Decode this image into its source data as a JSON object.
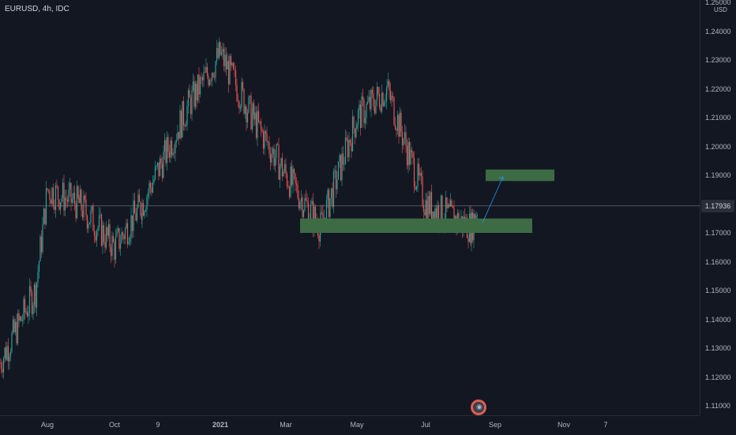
{
  "header": {
    "symbol": "EURUSD, 4h, IDC"
  },
  "price_scale": {
    "currency": "USD",
    "ticks": [
      "1.25000",
      "1.24000",
      "1.23000",
      "1.22000",
      "1.21000",
      "1.20000",
      "1.19000",
      "1.18000",
      "1.17000",
      "1.16000",
      "1.15000",
      "1.14000",
      "1.13000",
      "1.12000",
      "1.11000"
    ],
    "current_price": "1.17936"
  },
  "time_axis": {
    "labels": [
      {
        "text": "Aug",
        "bold": false
      },
      {
        "text": "Oct",
        "bold": false
      },
      {
        "text": "9",
        "bold": false
      },
      {
        "text": "2021",
        "bold": true
      },
      {
        "text": "Mar",
        "bold": false
      },
      {
        "text": "May",
        "bold": false
      },
      {
        "text": "Jul",
        "bold": false
      },
      {
        "text": "Sep",
        "bold": false
      },
      {
        "text": "Nov",
        "bold": false
      },
      {
        "text": "7",
        "bold": false
      }
    ]
  },
  "colors": {
    "background": "#131722",
    "up": "#26a69a",
    "down": "#ef5350",
    "zone": "#3d6b44",
    "arrow": "#2196f3"
  },
  "chart_data": {
    "type": "candlestick",
    "symbol": "EURUSD",
    "timeframe": "4h",
    "ylim": [
      1.11,
      1.25
    ],
    "price_path": [
      {
        "x": "Jun 2020",
        "y": 1.125
      },
      {
        "x": "Jul 2020",
        "y": 1.15
      },
      {
        "x": "Aug 2020",
        "y": 1.185
      },
      {
        "x": "Sep 2020",
        "y": 1.18
      },
      {
        "x": "Oct 2020",
        "y": 1.165
      },
      {
        "x": "Nov 2020",
        "y": 1.18
      },
      {
        "x": "Dec 2020",
        "y": 1.215
      },
      {
        "x": "Jan 2021",
        "y": 1.232
      },
      {
        "x": "Feb 2021",
        "y": 1.21
      },
      {
        "x": "Mar 2021",
        "y": 1.19
      },
      {
        "x": "Apr 2021",
        "y": 1.172
      },
      {
        "x": "May 2021",
        "y": 1.21
      },
      {
        "x": "Jun 2021",
        "y": 1.22
      },
      {
        "x": "Jul 2021",
        "y": 1.18
      },
      {
        "x": "Aug 2021",
        "y": 1.172
      },
      {
        "x": "Aug 2021 (last)",
        "y": 1.17936
      }
    ],
    "zones": [
      {
        "name": "support",
        "y": [
          1.17,
          1.175
        ]
      },
      {
        "name": "target",
        "y": [
          1.188,
          1.192
        ]
      }
    ],
    "current_price": 1.17936
  }
}
